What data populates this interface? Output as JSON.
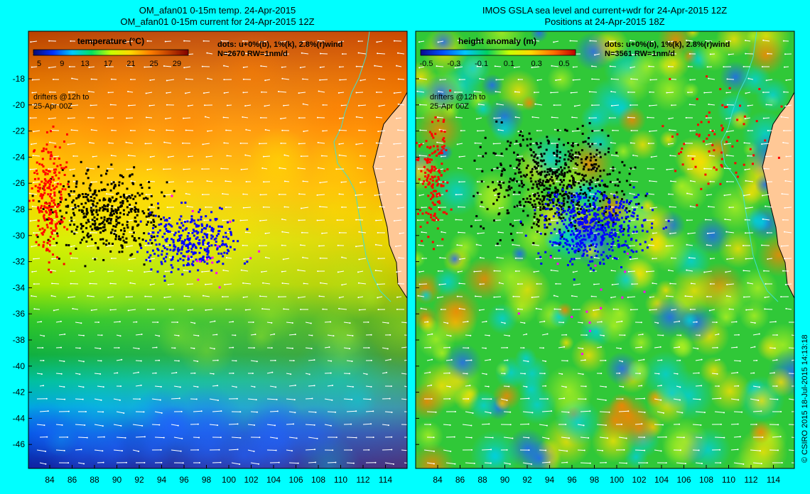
{
  "page": {
    "background": "#00ffff",
    "frame_color": "#000000"
  },
  "left_panel": {
    "title_line1": "OM_afan01 0-15m temp. 24-Apr-2015",
    "title_line2": "OM_afan01 0-15m current for 24-Apr-2015 12Z",
    "colorbar": {
      "label": "temperature (°C)",
      "ticks": [
        "5",
        "9",
        "13",
        "17",
        "21",
        "25",
        "29"
      ],
      "stops": [
        "#0a0a6e",
        "#0030ff",
        "#00c8ff",
        "#00e060",
        "#c8ff00",
        "#ffd800",
        "#ff8000",
        "#c04000",
        "#800000"
      ]
    },
    "info_line1": "dots: u+0%(b), 1%(k), 2.8%(r)wind",
    "info_line2": "N=2670 RW=1nm/d",
    "drifters_line1": "drifters @12h to",
    "drifters_line2": "25-Apr 00Z"
  },
  "right_panel": {
    "title_line1": "IMOS GSLA sea level and current+wdr for 24-Apr-2015 12Z",
    "title_line2": "Positions at 24-Apr-2015 18Z",
    "colorbar": {
      "label": "height anomaly (m)",
      "ticks": [
        "-0.5",
        "-0.3",
        "-0.1",
        "0.1",
        "0.3",
        "0.5"
      ],
      "stops": [
        "#0a0a8c",
        "#0050ff",
        "#00c8ff",
        "#00d060",
        "#c8ff00",
        "#ffd800",
        "#ff7000",
        "#c00000"
      ]
    },
    "info_line1": "dots: u+0%(b), 1%(k), 2.8%(r)wind",
    "info_line2": "N=3561 RW=1nm/d",
    "drifters_line1": "drifters @12h to",
    "drifters_line2": "25-Apr 00Z"
  },
  "axes": {
    "lat_ticks": [
      "-18",
      "-20",
      "-22",
      "-24",
      "-26",
      "-28",
      "-30",
      "-32",
      "-34",
      "-36",
      "-38",
      "-40",
      "-42",
      "-44",
      "-46"
    ],
    "lon_ticks": [
      "84",
      "86",
      "88",
      "90",
      "92",
      "94",
      "96",
      "98",
      "100",
      "102",
      "104",
      "106",
      "108",
      "110",
      "112",
      "114"
    ]
  },
  "colors": {
    "land": "#ffc896",
    "coast": "#000000",
    "isobath": "#40e0d0",
    "vector": "#ffffff",
    "dot_current": "#0000ff",
    "dot_1pct": "#000000",
    "dot_wind": "#ff0000",
    "dot_magenta": "#ff00ff"
  },
  "credit": "© CSIRO 2015   18-Jul-2015 14:13:18"
}
